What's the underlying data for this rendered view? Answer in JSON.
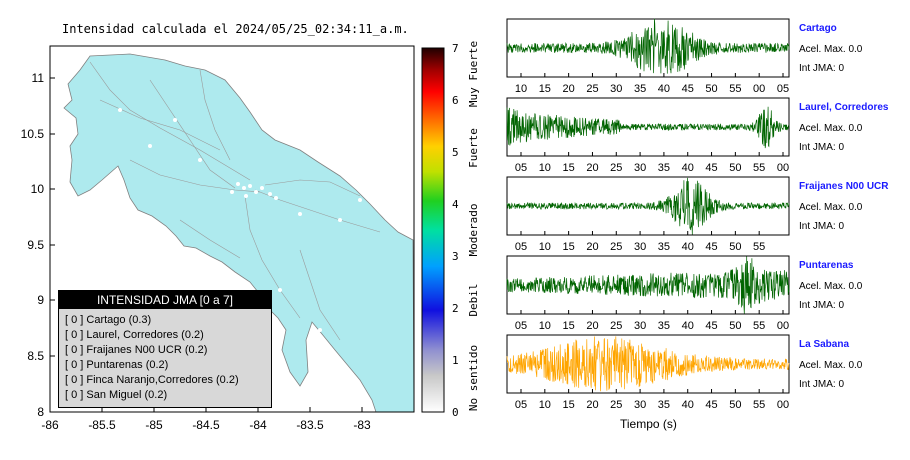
{
  "map": {
    "title": "Intensidad calculada el 2024/05/25_02:34:11_a.m.",
    "lon_ticks": [
      "-86",
      "-85.5",
      "-85",
      "-84.5",
      "-84",
      "-83.5",
      "-83"
    ],
    "lat_ticks": [
      "11",
      "10.5",
      "10",
      "9.5",
      "9",
      "8.5",
      "8"
    ],
    "land_color": "#aeeaee",
    "sea_color": "#ffffff"
  },
  "colorbar": {
    "ticks": [
      "7",
      "6",
      "5",
      "4",
      "3",
      "2",
      "1",
      "0"
    ],
    "categories": [
      "Muy Fuerte",
      "Fuerte",
      "Moderado",
      "Debil",
      "No sentido"
    ]
  },
  "legend": {
    "header": "INTENSIDAD JMA [0 a 7]",
    "items": [
      "[ 0 ]  Cartago (0.3)",
      "[ 0 ]  Laurel, Corredores (0.2)",
      "[ 0 ]  Fraijanes N00 UCR (0.2)",
      "[ 0 ]  Puntarenas (0.2)",
      "[ 0 ]  Finca Naranjo,Corredores (0.2)",
      "[ 0 ]  San Miguel (0.2)"
    ]
  },
  "stations": [
    {
      "name": "Cartago",
      "acel": "Acel. Max. 0.0",
      "jma": "Int JMA: 0",
      "color": "#006400",
      "ticks": [
        "10",
        "15",
        "20",
        "25",
        "30",
        "35",
        "40",
        "45",
        "50",
        "55",
        "00",
        "05"
      ]
    },
    {
      "name": "Laurel, Corredores",
      "acel": "Acel. Max. 0.0",
      "jma": "Int JMA: 0",
      "color": "#006400",
      "ticks": [
        "05",
        "10",
        "15",
        "20",
        "25",
        "30",
        "35",
        "40",
        "45",
        "50",
        "55",
        "00"
      ]
    },
    {
      "name": "Fraijanes N00 UCR",
      "acel": "Acel. Max. 0.0",
      "jma": "Int JMA: 0",
      "color": "#006400",
      "ticks": [
        "05",
        "10",
        "15",
        "20",
        "25",
        "30",
        "35",
        "40",
        "45",
        "50",
        "55"
      ]
    },
    {
      "name": "Puntarenas",
      "acel": "Acel. Max. 0.0",
      "jma": "Int JMA: 0",
      "color": "#006400",
      "ticks": [
        "05",
        "10",
        "15",
        "20",
        "25",
        "30",
        "35",
        "40",
        "45",
        "50",
        "55",
        "00"
      ]
    },
    {
      "name": "La Sabana",
      "acel": "Acel. Max. 0.0",
      "jma": "Int JMA: 0",
      "color": "#ffa500",
      "ticks": [
        "05",
        "10",
        "15",
        "20",
        "25",
        "30",
        "35",
        "40",
        "45",
        "50",
        "55",
        "00"
      ]
    }
  ],
  "time_axis_label": "Tiempo (s)",
  "chart_data": {
    "type": "line",
    "title": "Intensidad calculada el 2024/05/25_02:34:11_a.m.",
    "xlabel": "Tiempo (s)",
    "series": [
      {
        "name": "Cartago",
        "peak_time_tick": "40",
        "acel_max": 0.0,
        "int_jma": 0
      },
      {
        "name": "Laurel, Corredores",
        "peak_time_tick": "00",
        "acel_max": 0.0,
        "int_jma": 0
      },
      {
        "name": "Fraijanes N00 UCR",
        "peak_time_tick": "35",
        "acel_max": 0.0,
        "int_jma": 0
      },
      {
        "name": "Puntarenas",
        "peak_time_tick": "55",
        "acel_max": 0.0,
        "int_jma": 0
      },
      {
        "name": "La Sabana",
        "peak_time_tick": "25",
        "acel_max": 0.0,
        "int_jma": 0
      }
    ],
    "map_axes": {
      "lon_range": [
        -86,
        -82.5
      ],
      "lat_range": [
        8,
        11.3
      ]
    },
    "colorbar_range": [
      0,
      7
    ]
  }
}
